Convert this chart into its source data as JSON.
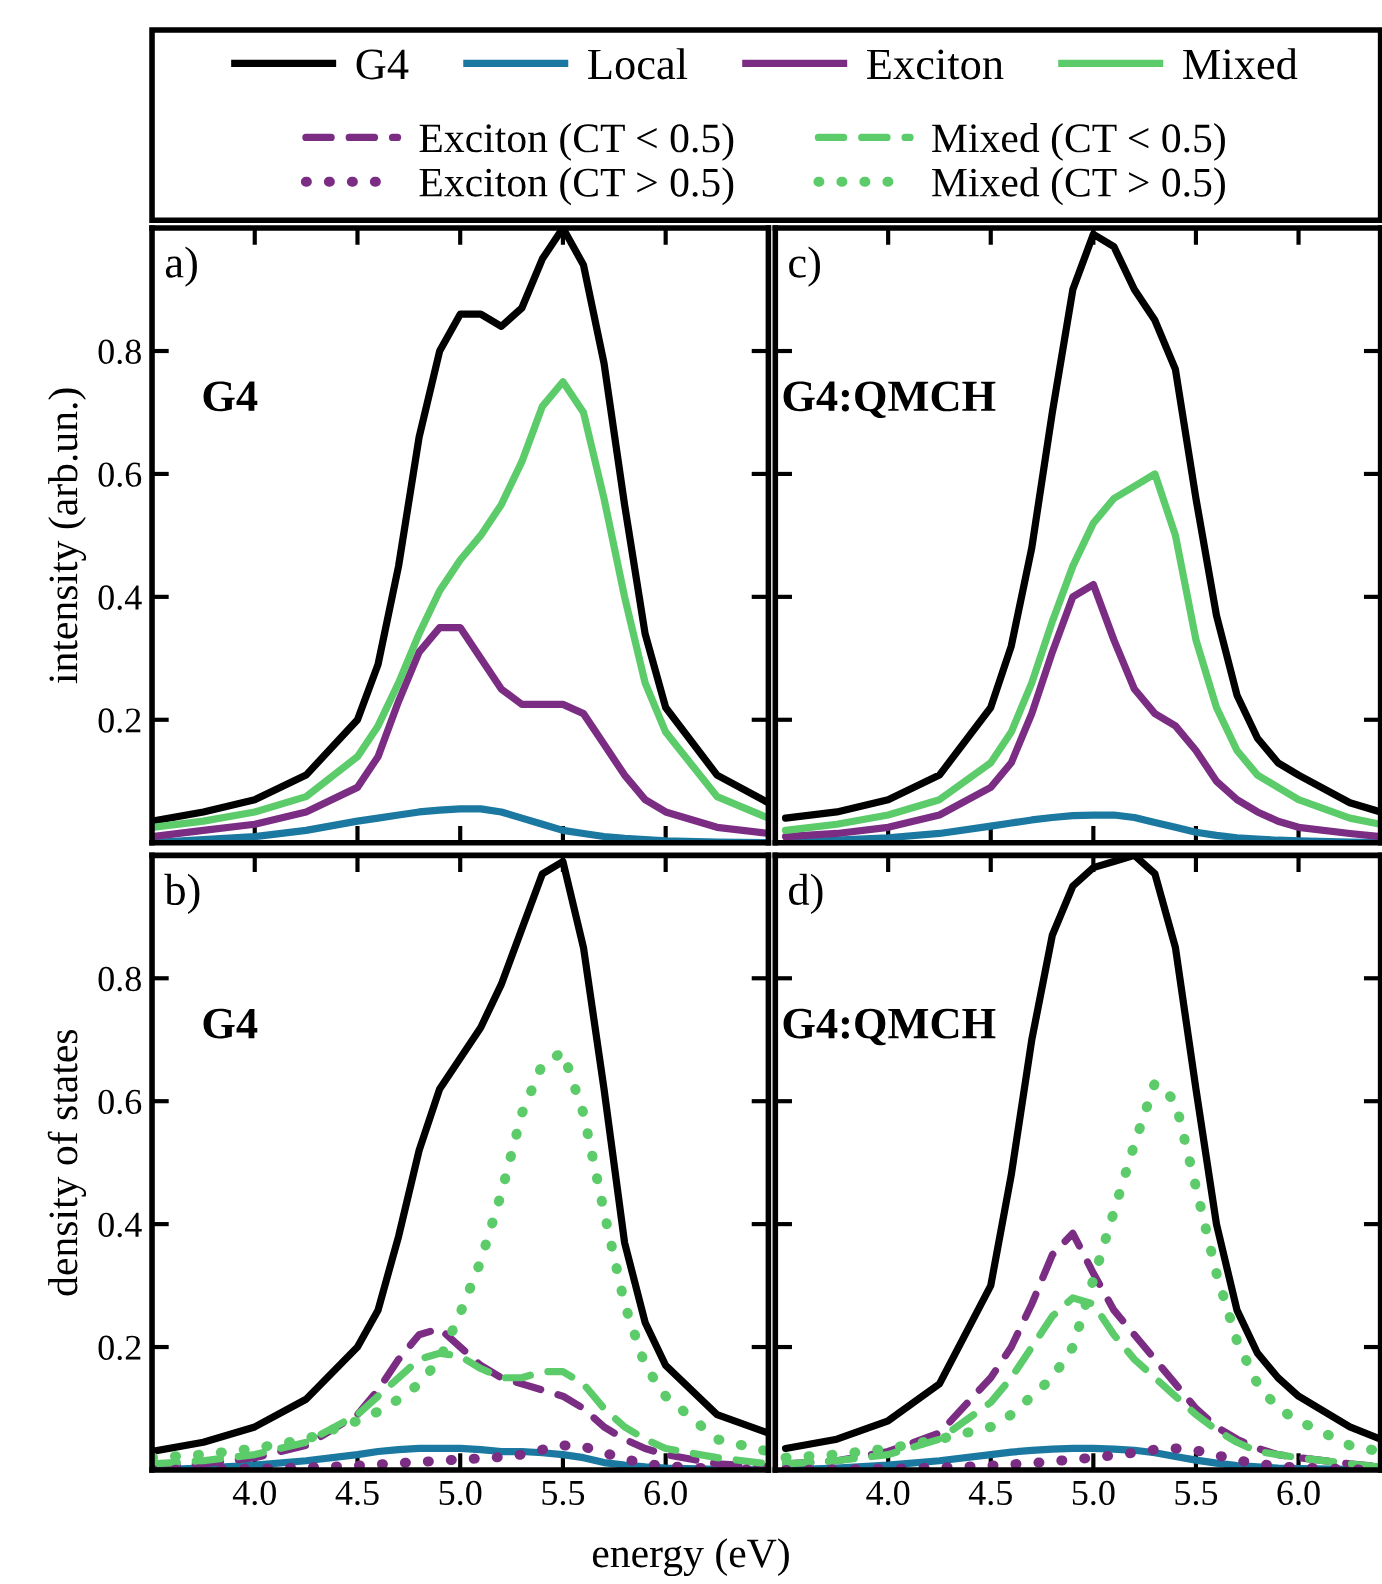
{
  "chart_data": [
    {
      "type": "line",
      "ylabel": "intensity (arb.un.)",
      "annotations": [
        "a)",
        "G4"
      ],
      "legend": "top",
      "tick_labels": "y",
      "xlim": [
        3.5,
        6.5
      ],
      "ylim": [
        0,
        1.0
      ],
      "xticks": [
        4.0,
        4.5,
        5.0,
        5.5,
        6.0
      ],
      "yticks": [
        0.2,
        0.4,
        0.6,
        0.8
      ],
      "x": [
        3.5,
        3.75,
        4.0,
        4.25,
        4.5,
        4.6,
        4.7,
        4.8,
        4.9,
        5.0,
        5.1,
        5.2,
        5.3,
        5.4,
        5.5,
        5.6,
        5.7,
        5.8,
        5.9,
        6.0,
        6.25,
        6.5
      ],
      "series": [
        {
          "name": "G4",
          "color": "#000000",
          "values": [
            0.035,
            0.05,
            0.07,
            0.11,
            0.2,
            0.29,
            0.45,
            0.66,
            0.8,
            0.86,
            0.86,
            0.84,
            0.87,
            0.95,
            1.0,
            0.94,
            0.78,
            0.55,
            0.34,
            0.22,
            0.11,
            0.065
          ]
        },
        {
          "name": "Local",
          "color": "#1b78a0",
          "values": [
            0.0,
            0.005,
            0.01,
            0.02,
            0.035,
            0.04,
            0.045,
            0.05,
            0.053,
            0.055,
            0.055,
            0.05,
            0.04,
            0.03,
            0.02,
            0.015,
            0.01,
            0.007,
            0.005,
            0.003,
            0.001,
            0.0
          ]
        },
        {
          "name": "Exciton",
          "color": "#7b2d84",
          "values": [
            0.01,
            0.02,
            0.03,
            0.05,
            0.09,
            0.14,
            0.23,
            0.31,
            0.35,
            0.35,
            0.3,
            0.25,
            0.225,
            0.225,
            0.225,
            0.21,
            0.16,
            0.11,
            0.07,
            0.05,
            0.025,
            0.015
          ]
        },
        {
          "name": "Mixed",
          "color": "#5ccb6a",
          "values": [
            0.025,
            0.035,
            0.05,
            0.075,
            0.14,
            0.19,
            0.26,
            0.34,
            0.41,
            0.46,
            0.5,
            0.55,
            0.62,
            0.71,
            0.75,
            0.7,
            0.56,
            0.4,
            0.26,
            0.18,
            0.075,
            0.04
          ]
        }
      ]
    },
    {
      "type": "line",
      "ylabel": "density of states",
      "xlabel": "energy (eV)",
      "annotations": [
        "b)",
        "G4"
      ],
      "legend": "top",
      "xlim": [
        3.5,
        6.5
      ],
      "ylim": [
        0,
        1.0
      ],
      "xticks": [
        {
          "value": 4.0,
          "label": "4.0"
        },
        {
          "value": 4.5,
          "label": "4.5"
        },
        {
          "value": 5.0,
          "label": "5.0"
        },
        {
          "value": 5.5,
          "label": "5.5"
        },
        {
          "value": 6.0,
          "label": "6.0"
        }
      ],
      "yticks": [
        0.2,
        0.4,
        0.6,
        0.8
      ],
      "x": [
        3.5,
        3.75,
        4.0,
        4.25,
        4.5,
        4.6,
        4.7,
        4.8,
        4.9,
        5.0,
        5.1,
        5.2,
        5.3,
        5.4,
        5.5,
        5.6,
        5.7,
        5.8,
        5.9,
        6.0,
        6.25,
        6.5
      ],
      "series": [
        {
          "color": "#000000",
          "values": [
            0.03,
            0.045,
            0.07,
            0.115,
            0.2,
            0.26,
            0.38,
            0.52,
            0.62,
            0.67,
            0.72,
            0.79,
            0.88,
            0.97,
            0.99,
            0.85,
            0.62,
            0.37,
            0.24,
            0.17,
            0.09,
            0.06
          ]
        },
        {
          "color": "#1b78a0",
          "values": [
            0.0,
            0.003,
            0.008,
            0.015,
            0.025,
            0.03,
            0.033,
            0.035,
            0.035,
            0.035,
            0.033,
            0.03,
            0.03,
            0.028,
            0.025,
            0.02,
            0.012,
            0.008,
            0.005,
            0.003,
            0.001,
            0.0
          ]
        },
        {
          "name": "Exciton (CT < 0.5)",
          "color": "#7b2d84",
          "line_style": "dashed",
          "values": [
            0.005,
            0.01,
            0.02,
            0.04,
            0.09,
            0.13,
            0.18,
            0.22,
            0.23,
            0.2,
            0.17,
            0.15,
            0.14,
            0.13,
            0.12,
            0.1,
            0.07,
            0.05,
            0.035,
            0.025,
            0.01,
            0.005
          ]
        },
        {
          "name": "Mixed (CT < 0.5)",
          "color": "#5ccb6a",
          "line_style": "dashed",
          "values": [
            0.01,
            0.015,
            0.025,
            0.045,
            0.09,
            0.12,
            0.15,
            0.18,
            0.19,
            0.185,
            0.165,
            0.15,
            0.15,
            0.16,
            0.16,
            0.14,
            0.1,
            0.07,
            0.05,
            0.035,
            0.02,
            0.01
          ]
        },
        {
          "name": "Exciton (CT > 0.5)",
          "color": "#7b2d84",
          "line_style": "dotted",
          "values": [
            0.0,
            0.001,
            0.002,
            0.004,
            0.007,
            0.009,
            0.011,
            0.013,
            0.015,
            0.017,
            0.019,
            0.021,
            0.025,
            0.033,
            0.04,
            0.038,
            0.028,
            0.018,
            0.01,
            0.006,
            0.002,
            0.0
          ]
        },
        {
          "name": "Mixed (CT > 0.5)",
          "color": "#5ccb6a",
          "line_style": "dotted",
          "values": [
            0.02,
            0.025,
            0.035,
            0.05,
            0.08,
            0.095,
            0.115,
            0.14,
            0.18,
            0.255,
            0.34,
            0.45,
            0.58,
            0.66,
            0.68,
            0.58,
            0.42,
            0.27,
            0.17,
            0.12,
            0.05,
            0.03
          ]
        }
      ]
    },
    {
      "type": "line",
      "annotations": [
        "c)",
        "G4:QMCH"
      ],
      "tick_labels": false,
      "xlim": [
        3.45,
        6.4
      ],
      "ylim": [
        0,
        1.0
      ],
      "xticks": [
        4.0,
        4.5,
        5.0,
        5.5,
        6.0
      ],
      "yticks": [
        0.2,
        0.4,
        0.6,
        0.8
      ],
      "x": [
        3.5,
        3.75,
        4.0,
        4.25,
        4.5,
        4.6,
        4.7,
        4.8,
        4.9,
        5.0,
        5.1,
        5.2,
        5.3,
        5.4,
        5.5,
        5.6,
        5.7,
        5.8,
        5.9,
        6.0,
        6.25,
        6.4
      ],
      "series": [
        {
          "color": "#000000",
          "values": [
            0.04,
            0.05,
            0.07,
            0.11,
            0.22,
            0.32,
            0.48,
            0.7,
            0.9,
            0.99,
            0.97,
            0.9,
            0.85,
            0.77,
            0.56,
            0.37,
            0.24,
            0.17,
            0.13,
            0.11,
            0.065,
            0.05
          ]
        },
        {
          "color": "#1b78a0",
          "values": [
            0.0,
            0.004,
            0.008,
            0.015,
            0.027,
            0.032,
            0.037,
            0.041,
            0.044,
            0.045,
            0.045,
            0.041,
            0.033,
            0.025,
            0.017,
            0.012,
            0.008,
            0.006,
            0.004,
            0.003,
            0.001,
            0.0
          ]
        },
        {
          "color": "#7b2d84",
          "values": [
            0.01,
            0.015,
            0.025,
            0.045,
            0.09,
            0.13,
            0.21,
            0.31,
            0.4,
            0.42,
            0.33,
            0.25,
            0.21,
            0.19,
            0.15,
            0.1,
            0.07,
            0.05,
            0.035,
            0.025,
            0.015,
            0.01
          ]
        },
        {
          "color": "#5ccb6a",
          "values": [
            0.02,
            0.03,
            0.045,
            0.07,
            0.13,
            0.18,
            0.26,
            0.36,
            0.45,
            0.52,
            0.56,
            0.58,
            0.6,
            0.5,
            0.33,
            0.22,
            0.15,
            0.11,
            0.09,
            0.07,
            0.04,
            0.03
          ]
        }
      ]
    },
    {
      "type": "line",
      "annotations": [
        "d)",
        "G4:QMCH"
      ],
      "tick_labels": "x",
      "xlim": [
        3.45,
        6.4
      ],
      "ylim": [
        0,
        1.0
      ],
      "xticks": [
        {
          "value": 4.0,
          "label": "4.0"
        },
        {
          "value": 4.5,
          "label": "4.5"
        },
        {
          "value": 5.0,
          "label": "5.0"
        },
        {
          "value": 5.5,
          "label": "5.5"
        },
        {
          "value": 6.0,
          "label": "6.0"
        }
      ],
      "yticks": [
        0.2,
        0.4,
        0.6,
        0.8
      ],
      "x": [
        3.5,
        3.75,
        4.0,
        4.25,
        4.5,
        4.6,
        4.7,
        4.8,
        4.9,
        5.0,
        5.1,
        5.2,
        5.3,
        5.4,
        5.5,
        5.6,
        5.7,
        5.8,
        5.9,
        6.0,
        6.25,
        6.4
      ],
      "series": [
        {
          "color": "#000000",
          "values": [
            0.035,
            0.05,
            0.08,
            0.14,
            0.3,
            0.48,
            0.7,
            0.87,
            0.95,
            0.98,
            0.99,
            1.0,
            0.97,
            0.85,
            0.62,
            0.4,
            0.26,
            0.19,
            0.15,
            0.12,
            0.07,
            0.05
          ]
        },
        {
          "color": "#1b78a0",
          "values": [
            0.0,
            0.003,
            0.008,
            0.015,
            0.025,
            0.029,
            0.032,
            0.034,
            0.035,
            0.035,
            0.034,
            0.032,
            0.028,
            0.022,
            0.016,
            0.011,
            0.007,
            0.005,
            0.003,
            0.002,
            0.001,
            0.0
          ]
        },
        {
          "color": "#7b2d84",
          "line_style": "dashed",
          "values": [
            0.01,
            0.015,
            0.03,
            0.06,
            0.15,
            0.2,
            0.27,
            0.35,
            0.385,
            0.32,
            0.26,
            0.22,
            0.18,
            0.14,
            0.1,
            0.07,
            0.05,
            0.035,
            0.025,
            0.02,
            0.01,
            0.005
          ]
        },
        {
          "color": "#5ccb6a",
          "line_style": "dashed",
          "values": [
            0.01,
            0.015,
            0.025,
            0.05,
            0.11,
            0.15,
            0.2,
            0.25,
            0.28,
            0.27,
            0.22,
            0.18,
            0.15,
            0.12,
            0.09,
            0.065,
            0.045,
            0.03,
            0.025,
            0.02,
            0.01,
            0.005
          ]
        },
        {
          "color": "#7b2d84",
          "line_style": "dotted",
          "values": [
            0.0,
            0.001,
            0.002,
            0.004,
            0.007,
            0.009,
            0.011,
            0.014,
            0.017,
            0.02,
            0.024,
            0.028,
            0.033,
            0.035,
            0.032,
            0.024,
            0.016,
            0.01,
            0.006,
            0.004,
            0.001,
            0.0
          ]
        },
        {
          "color": "#5ccb6a",
          "line_style": "dotted",
          "values": [
            0.02,
            0.025,
            0.035,
            0.05,
            0.07,
            0.09,
            0.12,
            0.15,
            0.2,
            0.31,
            0.42,
            0.53,
            0.63,
            0.6,
            0.46,
            0.32,
            0.21,
            0.14,
            0.1,
            0.08,
            0.04,
            0.03
          ]
        }
      ]
    }
  ]
}
